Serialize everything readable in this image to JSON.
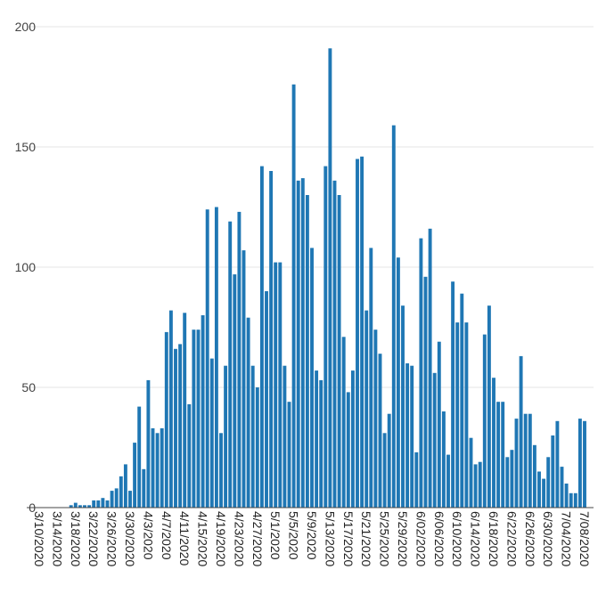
{
  "chart_data": {
    "type": "bar",
    "color": "#1f77b4",
    "ylim": [
      0,
      200
    ],
    "yticks": [
      0,
      50,
      100,
      150,
      200
    ],
    "grid": true,
    "start_date": "2020-03-10",
    "end_date": "2020-07-09",
    "xtick_labels": [
      "3/10/2020",
      "3/14/2020",
      "3/18/2020",
      "3/22/2020",
      "3/26/2020",
      "3/30/2020",
      "4/3/2020",
      "4/7/2020",
      "4/11/2020",
      "4/15/2020",
      "4/19/2020",
      "4/23/2020",
      "4/27/2020",
      "5/1/2020",
      "5/5/2020",
      "5/9/2020",
      "5/13/2020",
      "5/17/2020",
      "5/21/2020",
      "5/25/2020",
      "5/29/2020",
      "6/02/2020",
      "6/06/2020",
      "6/10/2020",
      "6/14/2020",
      "6/18/2020",
      "6/22/2020",
      "6/26/2020",
      "6/30/2020",
      "7/04/2020",
      "7/08/2020"
    ],
    "values": [
      0,
      0,
      0,
      0,
      0,
      0,
      0,
      1,
      2,
      1,
      1,
      1,
      3,
      3,
      4,
      3,
      7,
      8,
      13,
      18,
      7,
      27,
      42,
      16,
      53,
      33,
      31,
      33,
      73,
      82,
      66,
      68,
      81,
      43,
      74,
      74,
      80,
      124,
      62,
      125,
      31,
      59,
      119,
      97,
      123,
      107,
      79,
      59,
      50,
      142,
      90,
      140,
      102,
      102,
      59,
      44,
      176,
      136,
      137,
      130,
      108,
      57,
      53,
      142,
      191,
      136,
      130,
      71,
      48,
      57,
      145,
      146,
      82,
      108,
      74,
      64,
      31,
      39,
      159,
      104,
      84,
      60,
      59,
      23,
      112,
      96,
      116,
      56,
      69,
      40,
      22,
      94,
      77,
      89,
      77,
      29,
      18,
      19,
      72,
      84,
      54,
      44,
      44,
      21,
      24,
      37,
      63,
      39,
      39,
      26,
      15,
      12,
      21,
      30,
      36,
      17,
      10,
      6,
      6,
      37,
      36
    ]
  }
}
